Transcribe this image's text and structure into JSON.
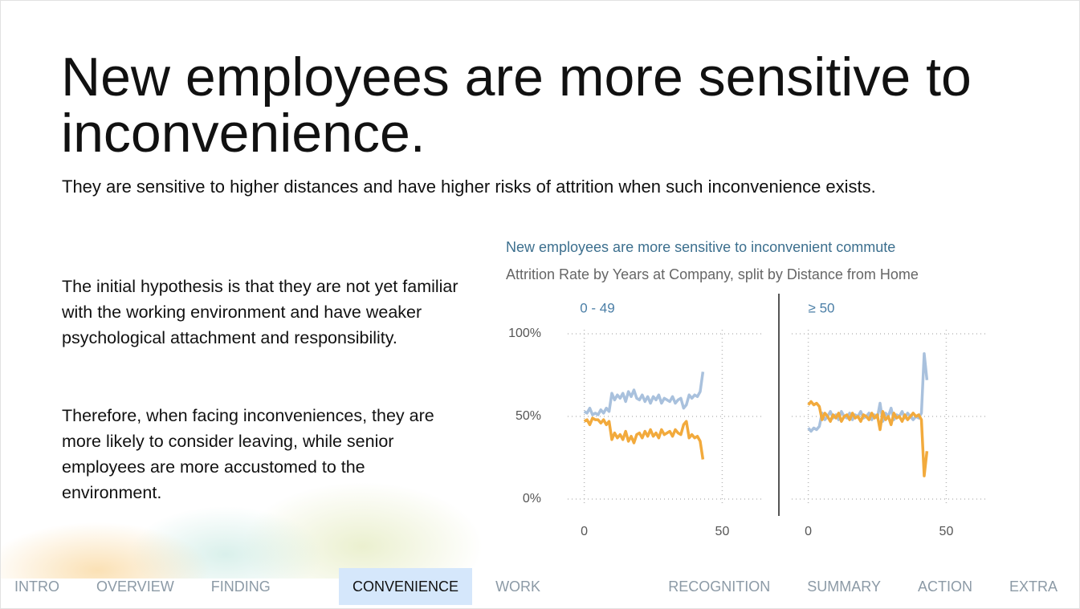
{
  "header": {
    "title": "New employees are more sensitive to inconvenience.",
    "subtitle": "They are sensitive to higher distances and have higher risks of attrition when such inconvenience exists."
  },
  "body": {
    "paragraphs": [
      "The initial hypothesis is that they are not yet familiar with the working environment and have weaker psychological attachment and responsibility.",
      "Therefore, when facing inconveniences, they are more likely to consider leaving, while senior employees are more accustomed to the environment."
    ]
  },
  "chart_data": {
    "type": "line",
    "title": "New employees are more sensitive to inconvenient commute",
    "subtitle": "Attrition Rate by Years at Company, split by Distance from Home",
    "x": [
      0,
      1,
      2,
      3,
      4,
      5,
      6,
      7,
      8,
      9,
      10,
      11,
      12,
      13,
      14,
      15,
      16,
      17,
      18,
      19,
      20,
      21,
      22,
      23,
      24,
      25,
      26,
      27,
      28,
      29,
      30,
      31,
      32,
      33,
      34,
      35,
      36,
      37,
      38,
      39,
      40,
      41,
      42,
      43
    ],
    "xlim": [
      -6,
      65
    ],
    "xticks": [
      0,
      50
    ],
    "ylim": [
      0,
      100
    ],
    "yticks": [
      {
        "value": 0,
        "label": "0%"
      },
      {
        "value": 50,
        "label": "50%"
      },
      {
        "value": 100,
        "label": "100%"
      }
    ],
    "grid": true,
    "panels": [
      {
        "label": "0 - 49",
        "series": [
          {
            "color": "#a9c1dd",
            "values": [
              53,
              52,
              55,
              51,
              52,
              51,
              54,
              52,
              55,
              53,
              64,
              60,
              63,
              61,
              64,
              59,
              65,
              62,
              66,
              61,
              60,
              63,
              59,
              62,
              58,
              62,
              60,
              63,
              58,
              61,
              60,
              59,
              62,
              58,
              60,
              61,
              55,
              57,
              63,
              61,
              63,
              62,
              65,
              77
            ]
          },
          {
            "color": "#f2aa3c",
            "values": [
              47,
              48,
              45,
              49,
              48,
              48,
              46,
              48,
              45,
              47,
              36,
              40,
              37,
              39,
              36,
              41,
              35,
              38,
              34,
              39,
              40,
              37,
              41,
              38,
              42,
              38,
              40,
              37,
              42,
              39,
              40,
              41,
              38,
              42,
              40,
              39,
              45,
              47,
              37,
              39,
              37,
              38,
              35,
              24
            ]
          }
        ]
      },
      {
        "label": "≥ 50",
        "series": [
          {
            "color": "#a9c1dd",
            "values": [
              43,
              41,
              43,
              42,
              44,
              52,
              48,
              50,
              53,
              49,
              51,
              48,
              53,
              50,
              49,
              52,
              48,
              51,
              50,
              53,
              49,
              50,
              52,
              48,
              51,
              49,
              58,
              47,
              52,
              50,
              55,
              48,
              51,
              50,
              53,
              49,
              52,
              50,
              48,
              50,
              49,
              52,
              88,
              72
            ]
          },
          {
            "color": "#f2aa3c",
            "values": [
              57,
              59,
              57,
              58,
              56,
              48,
              52,
              50,
              47,
              51,
              49,
              52,
              47,
              50,
              51,
              48,
              52,
              49,
              50,
              47,
              51,
              50,
              48,
              52,
              49,
              51,
              42,
              53,
              48,
              50,
              45,
              52,
              49,
              50,
              47,
              51,
              48,
              50,
              52,
              50,
              51,
              48,
              14,
              29
            ]
          }
        ]
      }
    ]
  },
  "nav": {
    "items": [
      "INTRO",
      "OVERVIEW",
      "FINDING RISKS",
      "CONVENIENCE",
      "WORK ALLOCATION",
      "RECOGNITION",
      "SUMMARY",
      "ACTION",
      "EXTRA"
    ],
    "active": "CONVENIENCE"
  }
}
